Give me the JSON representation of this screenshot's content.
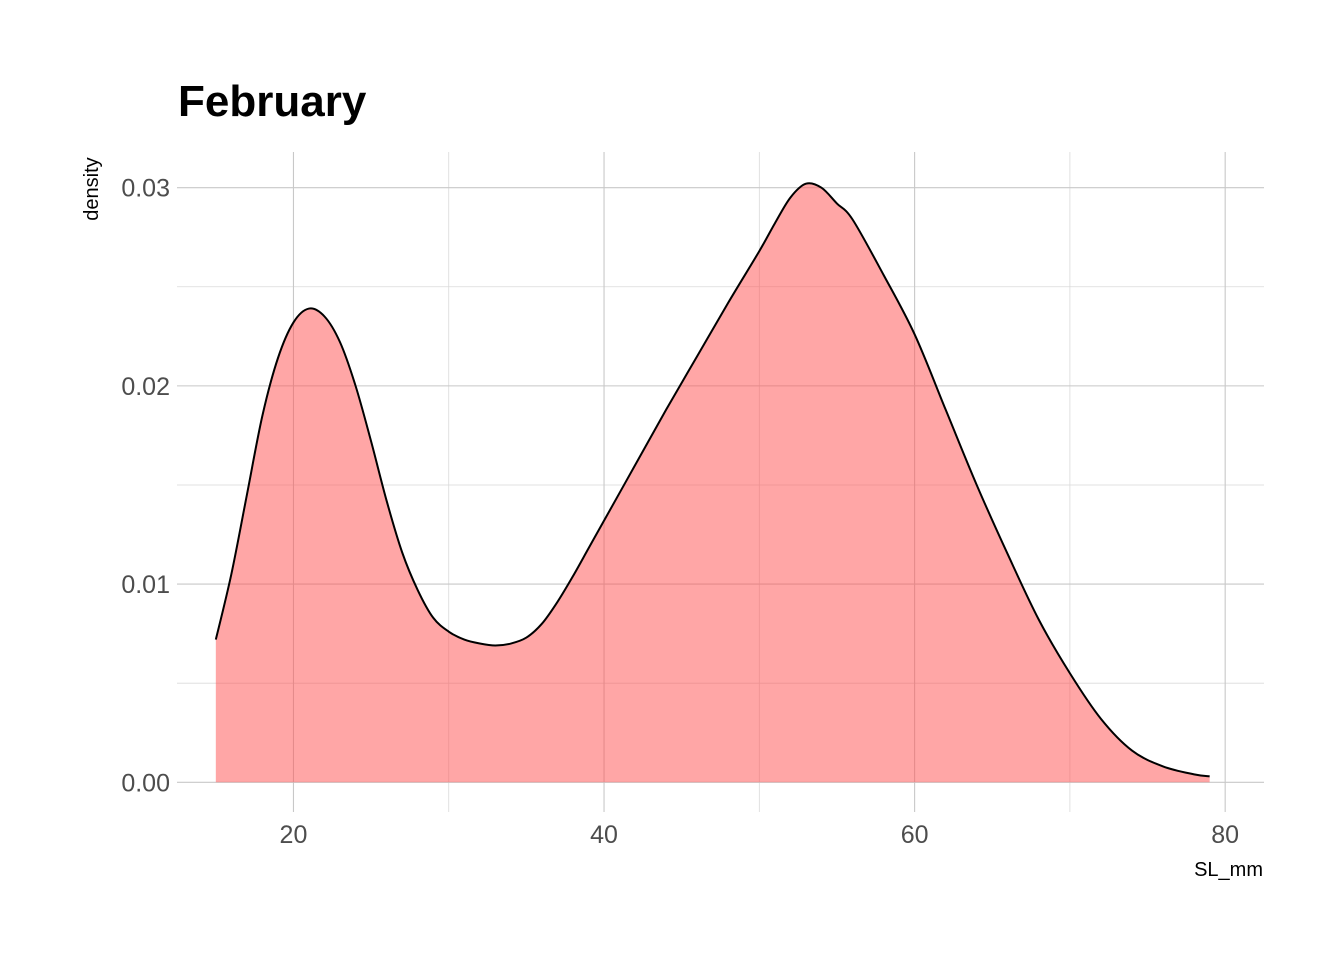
{
  "chart_data": {
    "type": "area",
    "title": "February",
    "xlabel": "SL_mm",
    "ylabel": "density",
    "xlim": [
      12.5,
      82.5
    ],
    "ylim": [
      -0.0015,
      0.0318
    ],
    "x_ticks": [
      20,
      40,
      60,
      80
    ],
    "x_tick_labels": [
      "20",
      "40",
      "60",
      "80"
    ],
    "x_minor_ticks": [
      30,
      50,
      70
    ],
    "y_ticks": [
      0.0,
      0.01,
      0.02,
      0.03
    ],
    "y_tick_labels": [
      "0.00",
      "0.01",
      "0.02",
      "0.03"
    ],
    "y_minor_ticks": [
      0.005,
      0.015,
      0.025
    ],
    "grid": true,
    "fill_color": "#ff4d4d",
    "fill_opacity": 0.5,
    "line_color": "#000000",
    "series": [
      {
        "x": [
          15,
          16,
          17,
          18,
          19,
          20,
          21,
          22,
          23,
          24,
          25,
          26,
          27,
          28,
          29,
          30,
          31,
          32,
          33,
          34,
          35,
          36,
          37,
          38,
          39,
          40,
          42,
          44,
          46,
          48,
          50,
          51,
          52,
          53,
          54,
          55,
          56,
          58,
          60,
          62,
          64,
          66,
          68,
          70,
          72,
          74,
          76,
          78,
          79
        ],
        "values": [
          0.0072,
          0.0105,
          0.0145,
          0.0185,
          0.0214,
          0.0232,
          0.0239,
          0.0235,
          0.0222,
          0.02,
          0.0172,
          0.0142,
          0.0116,
          0.0097,
          0.0083,
          0.0076,
          0.0072,
          0.007,
          0.0069,
          0.007,
          0.0073,
          0.008,
          0.0091,
          0.0104,
          0.0118,
          0.0132,
          0.016,
          0.0188,
          0.0215,
          0.0242,
          0.0268,
          0.0282,
          0.0295,
          0.0302,
          0.03,
          0.0292,
          0.0284,
          0.0256,
          0.0226,
          0.0188,
          0.015,
          0.0115,
          0.0082,
          0.0055,
          0.0032,
          0.0016,
          0.0008,
          0.0004,
          0.0003
        ]
      }
    ]
  }
}
